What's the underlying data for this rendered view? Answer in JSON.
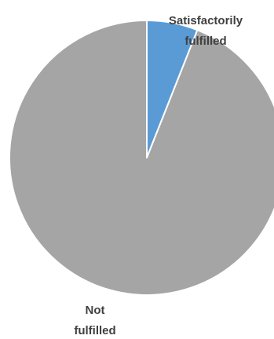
{
  "chart_data": {
    "type": "pie",
    "slices": [
      {
        "label": "Satisfactorily fulfilled",
        "value": 6,
        "color": "#5B9BD5"
      },
      {
        "label": "Not fulfilled",
        "value": 94,
        "color": "#A5A5A5"
      }
    ],
    "labels": {
      "satisfactorily_line1": "Satisfactorily",
      "satisfactorily_line2": "fulfilled",
      "not_line1": "Not",
      "not_line2": "fulfilled"
    },
    "start_angle_deg": 0,
    "direction": "clockwise",
    "slice_border_color": "#FFFFFF"
  }
}
